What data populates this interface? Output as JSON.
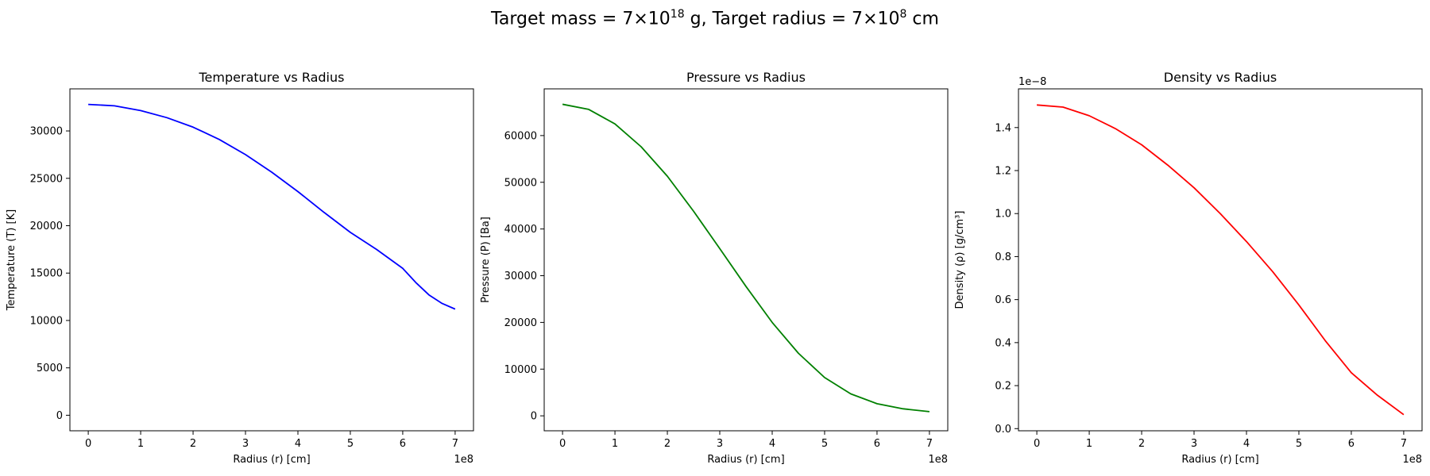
{
  "figure": {
    "suptitle_parts": [
      "Target mass = 7",
      "×",
      "10",
      "18",
      " g, Target radius = 7",
      "×",
      "10",
      "8",
      " cm"
    ]
  },
  "chart_data": [
    {
      "type": "line",
      "title": "Temperature vs Radius",
      "xlabel": "Radius (r) [cm]",
      "ylabel": "Temperature (T) [K]",
      "x_offset_label": "1e8",
      "y_offset_label": "",
      "xlim": [
        -0.35,
        7.35
      ],
      "ylim": [
        -1640,
        34440
      ],
      "xticks": [
        0,
        1,
        2,
        3,
        4,
        5,
        6,
        7
      ],
      "yticks": [
        0,
        5000,
        10000,
        15000,
        20000,
        25000,
        30000
      ],
      "ytick_labels": [
        "0",
        "5000",
        "10000",
        "15000",
        "20000",
        "25000",
        "30000"
      ],
      "grid": false,
      "color": "#0000ff",
      "series": [
        {
          "x": [
            0,
            0.5,
            1,
            1.5,
            2,
            2.5,
            3,
            3.5,
            4,
            4.5,
            5,
            5.5,
            6,
            6.25,
            6.5,
            6.75,
            7
          ],
          "y": [
            32800,
            32650,
            32150,
            31400,
            30400,
            29100,
            27500,
            25650,
            23600,
            21400,
            19300,
            17500,
            15500,
            14000,
            12700,
            11800,
            11200
          ]
        }
      ]
    },
    {
      "type": "line",
      "title": "Pressure vs Radius",
      "xlabel": "Radius (r) [cm]",
      "ylabel": "Pressure (P) [Ba]",
      "x_offset_label": "1e8",
      "y_offset_label": "",
      "xlim": [
        -0.35,
        7.35
      ],
      "ylim": [
        -3200,
        70000
      ],
      "xticks": [
        0,
        1,
        2,
        3,
        4,
        5,
        6,
        7
      ],
      "yticks": [
        0,
        10000,
        20000,
        30000,
        40000,
        50000,
        60000
      ],
      "ytick_labels": [
        "0",
        "10000",
        "20000",
        "30000",
        "40000",
        "50000",
        "60000"
      ],
      "grid": false,
      "color": "#008000",
      "series": [
        {
          "x": [
            0,
            0.5,
            1,
            1.5,
            2,
            2.5,
            3,
            3.5,
            4,
            4.5,
            5,
            5.5,
            6,
            6.5,
            7
          ],
          "y": [
            66700,
            65600,
            62500,
            57600,
            51300,
            43800,
            35800,
            27700,
            20000,
            13400,
            8200,
            4700,
            2600,
            1500,
            900
          ]
        }
      ]
    },
    {
      "type": "line",
      "title": "Density vs Radius",
      "xlabel": "Radius (r) [cm]",
      "ylabel": "Density (ρ) [g/cm³]",
      "x_offset_label": "1e8",
      "y_offset_label": "1e−8",
      "xlim": [
        -0.35,
        7.35
      ],
      "ylim": [
        -0.01,
        1.58
      ],
      "xticks": [
        0,
        1,
        2,
        3,
        4,
        5,
        6,
        7
      ],
      "yticks": [
        0.0,
        0.2,
        0.4,
        0.6,
        0.8,
        1.0,
        1.2,
        1.4
      ],
      "ytick_labels": [
        "0.0",
        "0.2",
        "0.4",
        "0.6",
        "0.8",
        "1.0",
        "1.2",
        "1.4"
      ],
      "grid": false,
      "color": "#ff0000",
      "series": [
        {
          "x": [
            0,
            0.5,
            1,
            1.5,
            2,
            2.5,
            3,
            3.5,
            4,
            4.5,
            5,
            5.5,
            6,
            6.5,
            7
          ],
          "y": [
            1.505,
            1.495,
            1.455,
            1.395,
            1.32,
            1.225,
            1.12,
            1.0,
            0.87,
            0.73,
            0.575,
            0.41,
            0.26,
            0.155,
            0.065
          ]
        }
      ]
    }
  ]
}
